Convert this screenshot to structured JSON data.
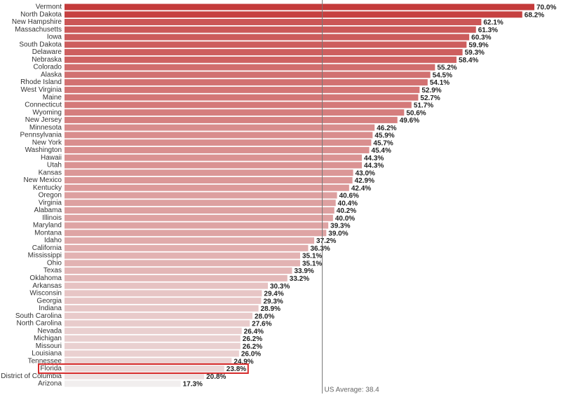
{
  "chart_data": {
    "type": "bar",
    "orientation": "horizontal",
    "categories": [
      "Vermont",
      "North Dakota",
      "New Hampshire",
      "Massachusetts",
      "Iowa",
      "South Dakota",
      "Delaware",
      "Nebraska",
      "Colorado",
      "Alaska",
      "Rhode Island",
      "West Virginia",
      "Maine",
      "Connecticut",
      "Wyoming",
      "New Jersey",
      "Minnesota",
      "Pennsylvania",
      "New York",
      "Washington",
      "Hawaii",
      "Utah",
      "Kansas",
      "New Mexico",
      "Kentucky",
      "Oregon",
      "Virginia",
      "Alabama",
      "Illinois",
      "Maryland",
      "Montana",
      "Idaho",
      "California",
      "Mississippi",
      "Ohio",
      "Texas",
      "Oklahoma",
      "Arkansas",
      "Wisconsin",
      "Georgia",
      "Indiana",
      "South Carolina",
      "North Carolina",
      "Nevada",
      "Michigan",
      "Missouri",
      "Louisiana",
      "Tennessee",
      "Florida",
      "District of Columbia",
      "Arizona"
    ],
    "values": [
      70.0,
      68.2,
      62.1,
      61.3,
      60.3,
      59.9,
      59.3,
      58.4,
      55.2,
      54.5,
      54.1,
      52.9,
      52.7,
      51.7,
      50.6,
      49.6,
      46.2,
      45.9,
      45.7,
      45.4,
      44.3,
      44.3,
      43.0,
      42.9,
      42.4,
      40.6,
      40.4,
      40.2,
      40.0,
      39.3,
      39.0,
      37.2,
      36.3,
      35.1,
      35.1,
      33.9,
      33.2,
      30.3,
      29.4,
      29.3,
      28.9,
      28.0,
      27.6,
      26.4,
      26.2,
      26.2,
      26.0,
      24.9,
      23.8,
      20.8,
      17.3
    ],
    "value_labels": [
      "70.0%",
      "68.2%",
      "62.1%",
      "61.3%",
      "60.3%",
      "59.9%",
      "59.3%",
      "58.4%",
      "55.2%",
      "54.5%",
      "54.1%",
      "52.9%",
      "52.7%",
      "51.7%",
      "50.6%",
      "49.6%",
      "46.2%",
      "45.9%",
      "45.7%",
      "45.4%",
      "44.3%",
      "44.3%",
      "43.0%",
      "42.9%",
      "42.4%",
      "40.6%",
      "40.4%",
      "40.2%",
      "40.0%",
      "39.3%",
      "39.0%",
      "37.2%",
      "36.3%",
      "35.1%",
      "35.1%",
      "33.9%",
      "33.2%",
      "30.3%",
      "29.4%",
      "29.3%",
      "28.9%",
      "28.0%",
      "27.6%",
      "26.4%",
      "26.2%",
      "26.2%",
      "26.0%",
      "24.9%",
      "23.8%",
      "20.8%",
      "17.3%"
    ],
    "xlim": [
      0,
      70
    ],
    "colors": {
      "high": "#c43b3b",
      "low": "#f1eeee"
    },
    "highlight": 48,
    "highlight_color": "#d62b2b",
    "reference_line": {
      "value": 38.4,
      "label": "US Average: 38.4",
      "color": "#777777"
    }
  }
}
